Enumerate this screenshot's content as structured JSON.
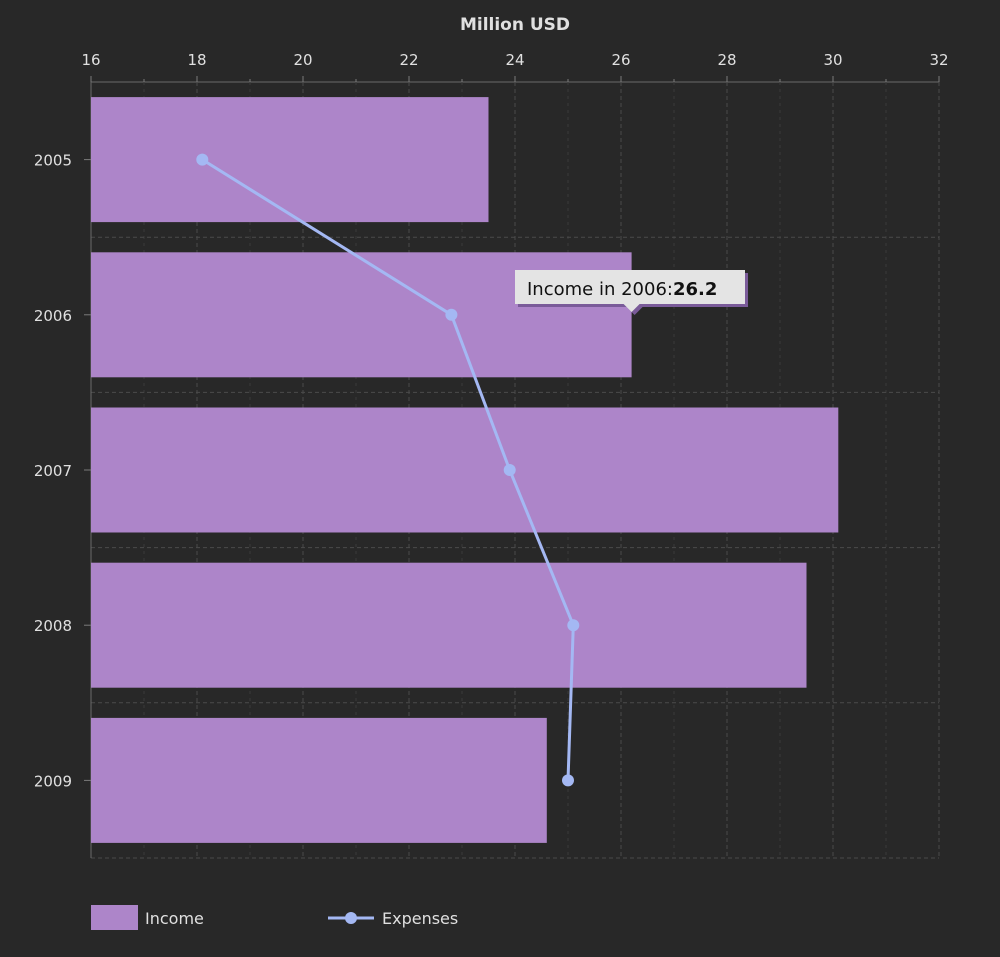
{
  "chart_data": {
    "type": "bar",
    "orientation": "horizontal",
    "categories": [
      "2005",
      "2006",
      "2007",
      "2008",
      "2009"
    ],
    "series": [
      {
        "name": "Income",
        "type": "bar",
        "values": [
          23.5,
          26.2,
          30.1,
          29.5,
          24.6
        ]
      },
      {
        "name": "Expenses",
        "type": "line",
        "values": [
          18.1,
          22.8,
          23.9,
          25.1,
          25.0
        ]
      }
    ],
    "xlabel": "Million USD",
    "xlim": [
      16,
      32
    ],
    "xticks": [
      "16",
      "18",
      "20",
      "22",
      "24",
      "26",
      "28",
      "30",
      "32"
    ],
    "grid": true,
    "legend_position": "bottom-left",
    "tooltip": {
      "label": "Income in 2006:",
      "value": "26.2"
    },
    "colors": {
      "income": "#ad85c9",
      "expenses": "#a4b8f3",
      "background": "#282828"
    }
  }
}
